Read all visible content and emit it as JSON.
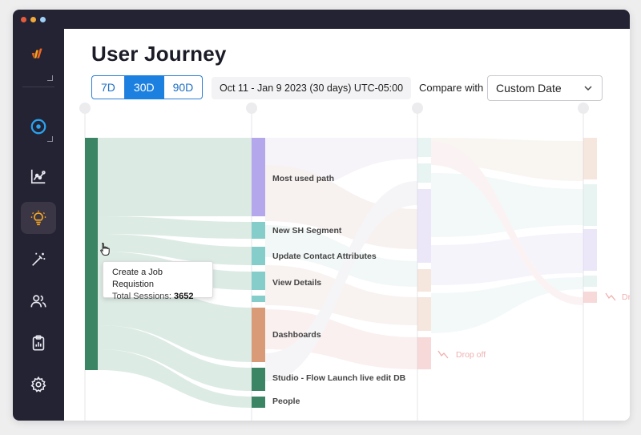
{
  "window": {
    "dots": [
      "#e55b3c",
      "#f2a93b",
      "#9fd0f5"
    ]
  },
  "sidebar": {
    "items": [
      {
        "icon": "brand-logo-icon"
      },
      {
        "icon": "target-icon"
      },
      {
        "icon": "chart-line-icon"
      },
      {
        "icon": "lightbulb-icon",
        "active": true
      },
      {
        "icon": "magic-wand-icon"
      },
      {
        "icon": "users-icon"
      },
      {
        "icon": "clipboard-icon"
      },
      {
        "icon": "settings-gear-icon"
      }
    ]
  },
  "page": {
    "title": "User Journey"
  },
  "range": {
    "options": [
      "7D",
      "30D",
      "90D"
    ],
    "selected": "30D",
    "date_range": "Oct 11 -  Jan 9 2023 (30 days) UTC-05:00"
  },
  "compare": {
    "label": "Compare with",
    "value": "Custom Date"
  },
  "tooltip": {
    "title": "Create a Job Requistion",
    "sessions_label": "Total Sessions:",
    "sessions_value": "3652"
  },
  "journey": {
    "nodes": [
      {
        "label": "Most used path",
        "color": "#b5a7ec"
      },
      {
        "label": "New SH Segment",
        "color": "#84cdca"
      },
      {
        "label": "Update Contact Attributes",
        "color": "#84cdca"
      },
      {
        "label": "View Details",
        "color": "#84cdca"
      },
      {
        "label": "Dashboards",
        "color": "#d89a77"
      },
      {
        "label": "Studio - Flow Launch live edit DB",
        "color": "#3b8464"
      },
      {
        "label": "People",
        "color": "#3b8464"
      }
    ],
    "drop_off_label": "Drop off",
    "drop_off_clipped": "Dr"
  },
  "colors": {
    "accent": "#1b80e0",
    "sidebar": "#232334",
    "root_node": "#3b8464"
  }
}
